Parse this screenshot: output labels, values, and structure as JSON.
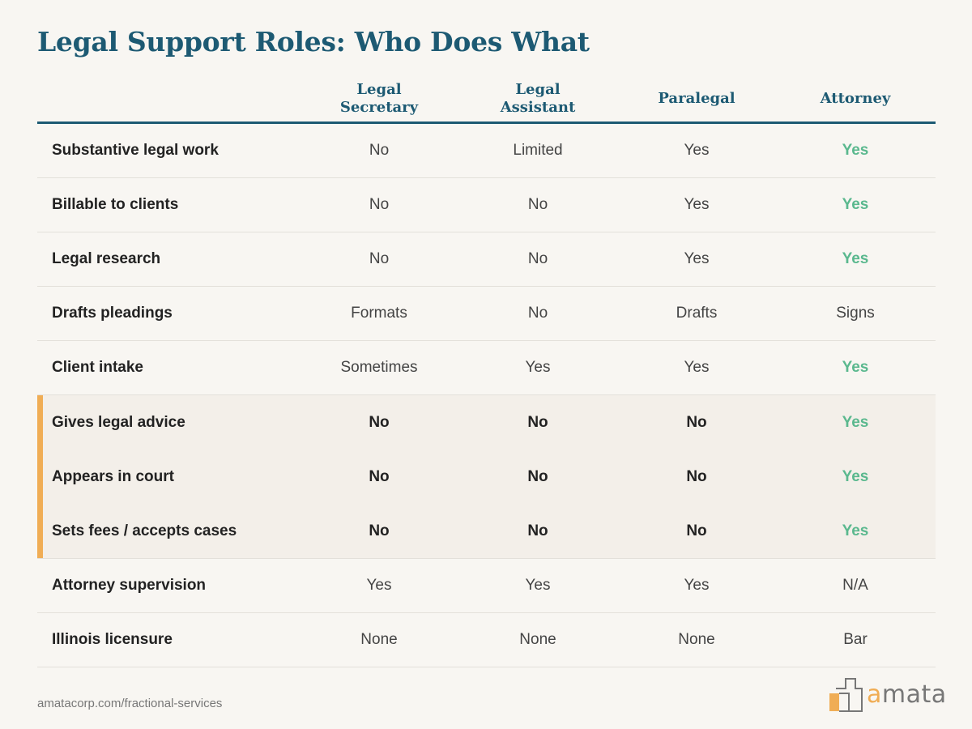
{
  "title": "Legal Support Roles: Who Does What",
  "columns": [
    "Legal Secretary",
    "Legal Assistant",
    "Paralegal",
    "Attorney"
  ],
  "rows": [
    {
      "label": "Substantive legal work",
      "values": [
        "No",
        "Limited",
        "Yes",
        "Yes"
      ]
    },
    {
      "label": "Billable to clients",
      "values": [
        "No",
        "No",
        "Yes",
        "Yes"
      ]
    },
    {
      "label": "Legal research",
      "values": [
        "No",
        "No",
        "Yes",
        "Yes"
      ]
    },
    {
      "label": "Drafts pleadings",
      "values": [
        "Formats",
        "No",
        "Drafts",
        "Signs"
      ]
    },
    {
      "label": "Client intake",
      "values": [
        "Sometimes",
        "Yes",
        "Yes",
        "Yes"
      ]
    },
    {
      "label": "Gives legal advice",
      "values": [
        "No",
        "No",
        "No",
        "Yes"
      ],
      "highlighted": true
    },
    {
      "label": "Appears in court",
      "values": [
        "No",
        "No",
        "No",
        "Yes"
      ],
      "highlighted": true
    },
    {
      "label": "Sets fees / accepts cases",
      "values": [
        "No",
        "No",
        "No",
        "Yes"
      ],
      "highlighted": true
    },
    {
      "label": "Attorney supervision",
      "values": [
        "Yes",
        "Yes",
        "Yes",
        "N/A"
      ]
    },
    {
      "label": "Illinois licensure",
      "values": [
        "None",
        "None",
        "None",
        "Bar"
      ]
    }
  ],
  "footer": {
    "url": "amatacorp.com/fractional-services",
    "logo_text": "amata"
  },
  "colors": {
    "accent": "#1d5a73",
    "highlight_bar": "#f0ad55",
    "yes_green": "#5ab88e"
  }
}
